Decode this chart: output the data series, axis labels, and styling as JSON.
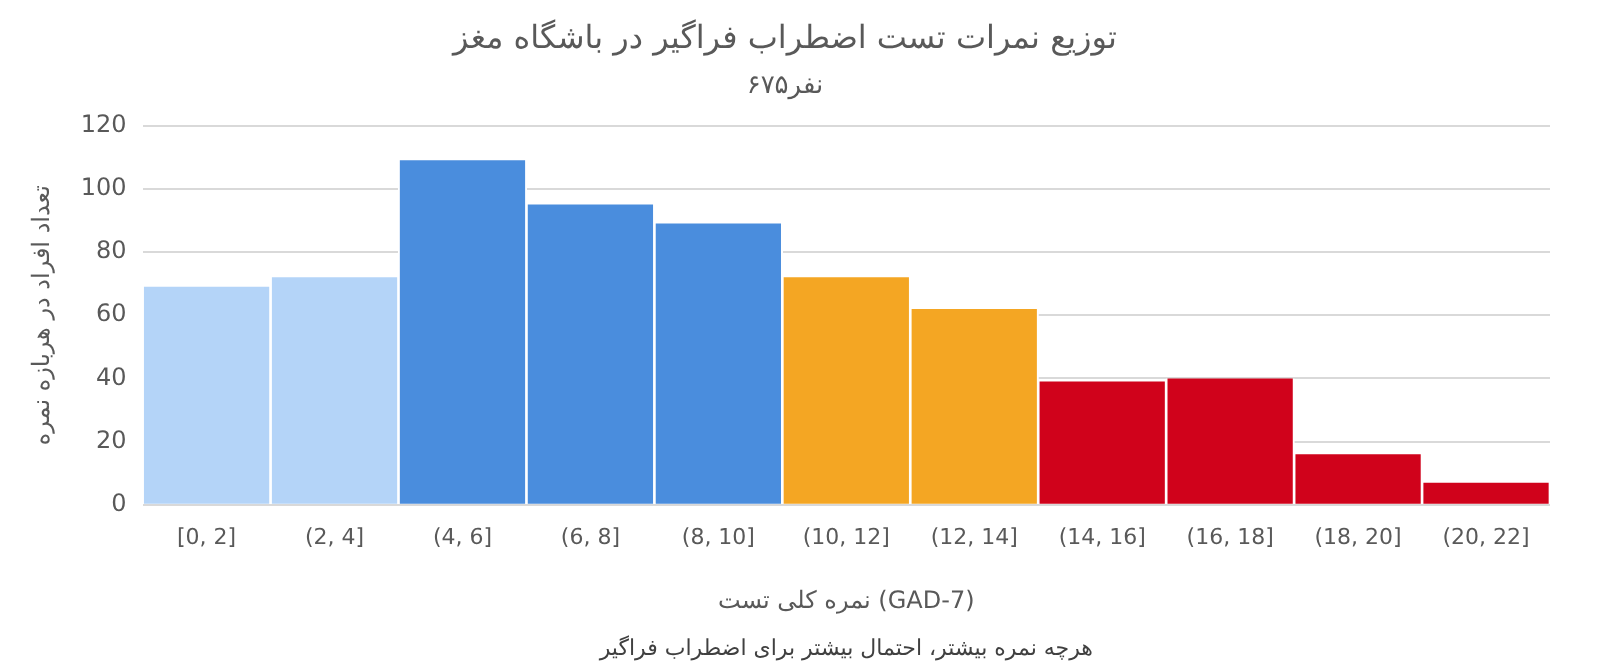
{
  "chart_data": {
    "type": "bar",
    "title": "توزیع نمرات تست اضطراب فراگیر در باشگاه مغز",
    "subtitle": "۶۷۵نفر",
    "xlabel": "نمره کلی تست (GAD-7)",
    "ylabel": "تعداد افراد در هربازه نمره",
    "annotations": [
      "هرچه نمره بیشتر، احتمال بیشتر برای اضطراب فراگیر"
    ],
    "categories": [
      "[0, 2]",
      "(2, 4]",
      "(4, 6]",
      "(6, 8]",
      "(8, 10]",
      "(10, 12]",
      "(12, 14]",
      "(14, 16]",
      "(16, 18]",
      "(18, 20]",
      "(20, 22]"
    ],
    "values": [
      69,
      72,
      109,
      95,
      89,
      72,
      62,
      39,
      40,
      16,
      7
    ],
    "colors": [
      "#b4d4f8",
      "#b4d4f8",
      "#4a8ddd",
      "#4a8ddd",
      "#4a8ddd",
      "#f4a623",
      "#f4a623",
      "#d0021b",
      "#d0021b",
      "#d0021b",
      "#d0021b"
    ],
    "ylim": [
      0,
      120
    ],
    "yticks": [
      0,
      20,
      40,
      60,
      80,
      100,
      120
    ],
    "grid": "y"
  }
}
